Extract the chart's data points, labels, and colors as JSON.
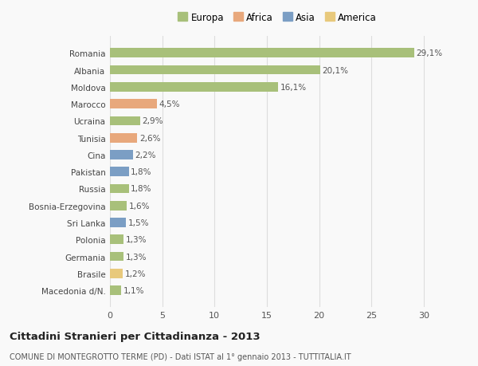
{
  "countries": [
    "Romania",
    "Albania",
    "Moldova",
    "Marocco",
    "Ucraina",
    "Tunisia",
    "Cina",
    "Pakistan",
    "Russia",
    "Bosnia-Erzegovina",
    "Sri Lanka",
    "Polonia",
    "Germania",
    "Brasile",
    "Macedonia d/N."
  ],
  "values": [
    29.1,
    20.1,
    16.1,
    4.5,
    2.9,
    2.6,
    2.2,
    1.8,
    1.8,
    1.6,
    1.5,
    1.3,
    1.3,
    1.2,
    1.1
  ],
  "labels": [
    "29,1%",
    "20,1%",
    "16,1%",
    "4,5%",
    "2,9%",
    "2,6%",
    "2,2%",
    "1,8%",
    "1,8%",
    "1,6%",
    "1,5%",
    "1,3%",
    "1,3%",
    "1,2%",
    "1,1%"
  ],
  "continents": [
    "Europa",
    "Europa",
    "Europa",
    "Africa",
    "Europa",
    "Africa",
    "Asia",
    "Asia",
    "Europa",
    "Europa",
    "Asia",
    "Europa",
    "Europa",
    "America",
    "Europa"
  ],
  "colors": {
    "Europa": "#a8c07a",
    "Africa": "#e8a87c",
    "Asia": "#7b9ec4",
    "America": "#e8c97c"
  },
  "background_color": "#f9f9f9",
  "grid_color": "#dddddd",
  "title": "Cittadini Stranieri per Cittadinanza - 2013",
  "subtitle": "COMUNE DI MONTEGROTTO TERME (PD) - Dati ISTAT al 1° gennaio 2013 - TUTTITALIA.IT",
  "xlim": [
    0,
    32
  ],
  "xticks": [
    0,
    5,
    10,
    15,
    20,
    25,
    30
  ],
  "legend_order": [
    "Europa",
    "Africa",
    "Asia",
    "America"
  ]
}
